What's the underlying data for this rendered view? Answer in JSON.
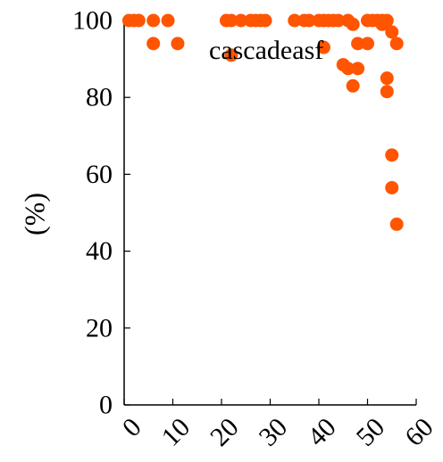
{
  "chart_data": {
    "type": "scatter",
    "ylabel": "(%)",
    "annotation": "cascadeasf",
    "xlim": [
      0,
      60
    ],
    "ylim": [
      0,
      100
    ],
    "x_ticks": [
      "0",
      "10",
      "20",
      "30",
      "40",
      "50",
      "60"
    ],
    "y_ticks": [
      "0",
      "20",
      "40",
      "60",
      "80",
      "100"
    ],
    "grid": false,
    "marker_color": "#ff5500",
    "points": [
      {
        "x": 1,
        "y": 100
      },
      {
        "x": 2,
        "y": 100
      },
      {
        "x": 3,
        "y": 100
      },
      {
        "x": 6,
        "y": 100
      },
      {
        "x": 6,
        "y": 94
      },
      {
        "x": 9,
        "y": 100
      },
      {
        "x": 11,
        "y": 94
      },
      {
        "x": 21,
        "y": 100
      },
      {
        "x": 22,
        "y": 100
      },
      {
        "x": 22,
        "y": 91
      },
      {
        "x": 24,
        "y": 100
      },
      {
        "x": 26,
        "y": 100
      },
      {
        "x": 27,
        "y": 100
      },
      {
        "x": 28,
        "y": 100
      },
      {
        "x": 29,
        "y": 100
      },
      {
        "x": 35,
        "y": 100
      },
      {
        "x": 37,
        "y": 100
      },
      {
        "x": 38,
        "y": 100
      },
      {
        "x": 40,
        "y": 100
      },
      {
        "x": 41,
        "y": 100
      },
      {
        "x": 41,
        "y": 93
      },
      {
        "x": 42,
        "y": 100
      },
      {
        "x": 43,
        "y": 100
      },
      {
        "x": 44,
        "y": 100
      },
      {
        "x": 45,
        "y": 88.5
      },
      {
        "x": 46,
        "y": 87.5
      },
      {
        "x": 46,
        "y": 100
      },
      {
        "x": 47,
        "y": 99
      },
      {
        "x": 47,
        "y": 83
      },
      {
        "x": 48,
        "y": 87.5
      },
      {
        "x": 48,
        "y": 94
      },
      {
        "x": 50,
        "y": 100
      },
      {
        "x": 50,
        "y": 94
      },
      {
        "x": 51,
        "y": 100
      },
      {
        "x": 52,
        "y": 100
      },
      {
        "x": 53,
        "y": 99
      },
      {
        "x": 53,
        "y": 100
      },
      {
        "x": 54,
        "y": 100
      },
      {
        "x": 54,
        "y": 85
      },
      {
        "x": 54,
        "y": 81.5
      },
      {
        "x": 55,
        "y": 97
      },
      {
        "x": 55,
        "y": 65
      },
      {
        "x": 55,
        "y": 56.5
      },
      {
        "x": 56,
        "y": 94
      },
      {
        "x": 56,
        "y": 47
      }
    ]
  }
}
